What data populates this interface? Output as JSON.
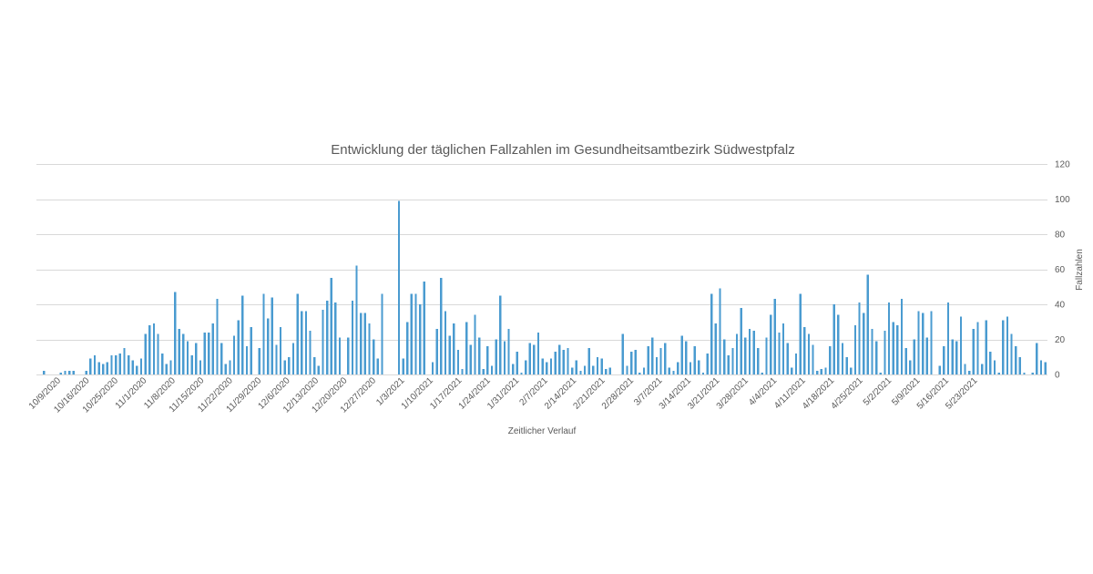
{
  "chart_data": {
    "type": "bar",
    "title": "Entwicklung der täglichen Fallzahlen im Gesundheitsamtbezirk Südwestpfalz",
    "xlabel": "Zeitlicher Verlauf",
    "ylabel": "Fallzahlen",
    "ylim": [
      0,
      120
    ],
    "yticks": [
      0,
      20,
      40,
      60,
      80,
      100,
      120
    ],
    "y_axis_position": "right",
    "grid": true,
    "legend": "none",
    "bar_color": "#4a9bd0",
    "x_start": "10/9/2020",
    "x_end": "5/29/2021",
    "tick_labels": [
      "10/9/2020",
      "10/16/2020",
      "10/25/2020",
      "11/1/2020",
      "11/8/2020",
      "11/15/2020",
      "11/22/2020",
      "11/29/2020",
      "12/6/2020",
      "12/13/2020",
      "12/20/2020",
      "12/27/2020",
      "1/3/2021",
      "1/10/2021",
      "1/17/2021",
      "1/24/2021",
      "1/31/2021",
      "2/7/2021",
      "2/14/2021",
      "2/21/2021",
      "2/28/2021",
      "3/7/2021",
      "3/14/2021",
      "3/21/2021",
      "3/28/2021",
      "4/4/2021",
      "4/11/2021",
      "4/18/2021",
      "4/25/2021",
      "5/2/2021",
      "5/9/2021",
      "5/16/2021",
      "5/23/2021"
    ],
    "values": [
      2,
      0,
      0,
      0,
      1,
      2,
      2,
      2,
      0,
      0,
      2,
      9,
      11,
      7,
      6,
      7,
      11,
      11,
      12,
      15,
      11,
      8,
      5,
      9,
      23,
      28,
      29,
      23,
      12,
      6,
      8,
      47,
      26,
      23,
      19,
      11,
      18,
      8,
      24,
      24,
      29,
      43,
      18,
      6,
      8,
      22,
      31,
      45,
      16,
      27,
      0,
      15,
      46,
      32,
      44,
      17,
      27,
      8,
      10,
      18,
      46,
      36,
      36,
      25,
      10,
      5,
      37,
      42,
      55,
      41,
      21,
      0,
      21,
      42,
      62,
      35,
      35,
      29,
      20,
      9,
      46,
      0,
      0,
      0,
      99,
      9,
      30,
      46,
      46,
      40,
      53,
      0,
      7,
      26,
      55,
      36,
      22,
      29,
      14,
      3,
      30,
      17,
      34,
      21,
      3,
      16,
      5,
      20,
      45,
      19,
      26,
      6,
      13,
      1,
      8,
      18,
      17,
      24,
      9,
      7,
      9,
      13,
      17,
      14,
      15,
      4,
      8,
      2,
      5,
      15,
      5,
      10,
      9,
      3,
      4,
      0,
      0,
      23,
      5,
      13,
      14,
      1,
      4,
      16,
      21,
      10,
      15,
      18,
      4,
      2,
      7,
      22,
      19,
      7,
      16,
      8,
      1,
      12,
      46,
      29,
      49,
      20,
      11,
      15,
      23,
      38,
      21,
      26,
      25,
      15,
      1,
      21,
      34,
      43,
      24,
      29,
      18,
      4,
      12,
      46,
      27,
      23,
      17,
      2,
      3,
      4,
      16,
      40,
      34,
      18,
      10,
      4,
      28,
      41,
      35,
      57,
      26,
      19,
      1,
      25,
      41,
      30,
      28,
      43,
      15,
      8,
      20,
      36,
      35,
      21,
      36,
      0,
      5,
      16,
      41,
      20,
      19,
      33,
      6,
      2,
      26,
      30,
      6,
      31,
      13,
      8,
      1,
      31,
      33,
      23,
      16,
      10,
      1,
      0,
      1,
      18,
      8,
      7
    ]
  }
}
